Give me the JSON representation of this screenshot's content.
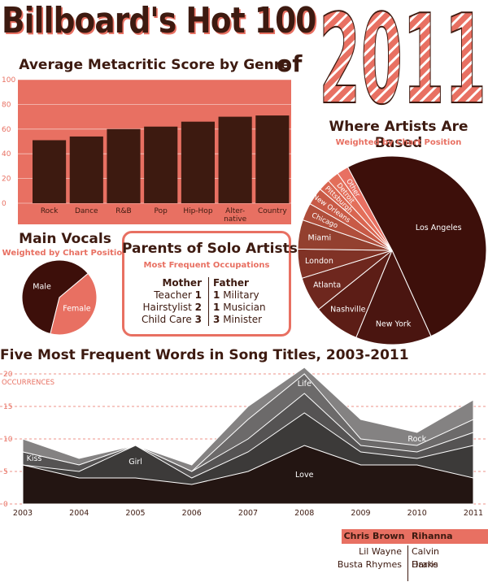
{
  "header": {
    "title": "Billboard's Hot 100",
    "of": "of",
    "year": "2011"
  },
  "colors": {
    "dark": "#3d1a10",
    "salmon": "#e87062",
    "bar": "#3d1a10",
    "panel": "#e87062"
  },
  "metacritic": {
    "title": "Average Metacritic Score by Genre"
  },
  "artists": {
    "title": "Where Artists Are Based",
    "subtitle": "Weighted by Chart Position"
  },
  "vocals": {
    "title": "Main Vocals",
    "subtitle": "Weighted by Chart Position"
  },
  "parents": {
    "title": "Parents of Solo Artists",
    "subtitle": "Most Frequent Occupations",
    "mother_header": "Mother",
    "father_header": "Father",
    "mother": [
      {
        "label": "Teacher",
        "count": "1"
      },
      {
        "label": "Hairstylist",
        "count": "2"
      },
      {
        "label": "Child Care",
        "count": "3"
      }
    ],
    "father": [
      {
        "label": "Military",
        "count": "1"
      },
      {
        "label": "Musician",
        "count": "1"
      },
      {
        "label": "Minister",
        "count": "3"
      }
    ]
  },
  "words": {
    "title": "Five Most Frequent Words in Song Titles, 2003-2011"
  },
  "collab_legend": {
    "headers": [
      "Chris Brown",
      "Rihanna"
    ],
    "left": [
      "Lil Wayne",
      "Busta Rhymes"
    ],
    "right": [
      "Calvin Harris",
      "Drake"
    ]
  },
  "chart_data": [
    {
      "type": "bar",
      "title": "Average Metacritic Score by Genre",
      "categories": [
        "Rock",
        "Dance",
        "R&B",
        "Pop",
        "Hip-Hop",
        "Alter-native",
        "Country"
      ],
      "category_lines": [
        [
          "Rock"
        ],
        [
          "Dance"
        ],
        [
          "R&B"
        ],
        [
          "Pop"
        ],
        [
          "Hip-Hop"
        ],
        [
          "Alter-",
          "native"
        ],
        [
          "Country"
        ]
      ],
      "values": [
        51,
        54,
        60,
        62,
        66,
        70,
        71
      ],
      "ylim": [
        0,
        100
      ],
      "yticks": [
        0,
        20,
        40,
        60,
        80,
        100
      ],
      "grid": true
    },
    {
      "type": "pie",
      "title": "Where Artists Are Based",
      "subtitle": "Weighted by Chart Position",
      "labels": [
        "Los Angeles",
        "New York",
        "Nashville",
        "Atlanta",
        "London",
        "Miami",
        "Chicago",
        "New Orleans",
        "Pittsburgh",
        "Detroit",
        "Other"
      ],
      "values": [
        51,
        13,
        8,
        6,
        5,
        5,
        3,
        3,
        2,
        2,
        2
      ]
    },
    {
      "type": "pie",
      "title": "Main Vocals",
      "subtitle": "Weighted by Chart Position",
      "labels": [
        "Male",
        "Female"
      ],
      "values": [
        60,
        40
      ]
    },
    {
      "type": "area",
      "title": "Five Most Frequent Words in Song Titles, 2003-2011",
      "ylabel": "OCCURRENCES",
      "x": [
        "2003",
        "2004",
        "2005",
        "2006",
        "2007",
        "2008",
        "2009",
        "2010",
        "2011"
      ],
      "ylim": [
        0,
        20
      ],
      "yticks": [
        0,
        5,
        10,
        15,
        20
      ],
      "stacked": true,
      "series": [
        {
          "name": "Love",
          "values": [
            6,
            4,
            4,
            3,
            5,
            9,
            6,
            6,
            4
          ]
        },
        {
          "name": "Girl",
          "values": [
            0,
            1,
            5,
            1,
            3,
            5,
            2,
            1,
            5
          ]
        },
        {
          "name": "Kiss",
          "values": [
            2,
            1,
            0,
            1,
            2,
            3,
            1,
            1,
            2
          ]
        },
        {
          "name": "Life",
          "values": [
            0,
            0,
            0,
            0,
            3,
            3,
            1,
            1,
            2
          ]
        },
        {
          "name": "Rock",
          "values": [
            2,
            1,
            0,
            1,
            2,
            1,
            3,
            2,
            3
          ]
        }
      ],
      "label_positions": {
        "Kiss": "2003",
        "Girl": "2005",
        "Life": "2008",
        "Rock": "2010",
        "Love": "2008"
      }
    }
  ]
}
